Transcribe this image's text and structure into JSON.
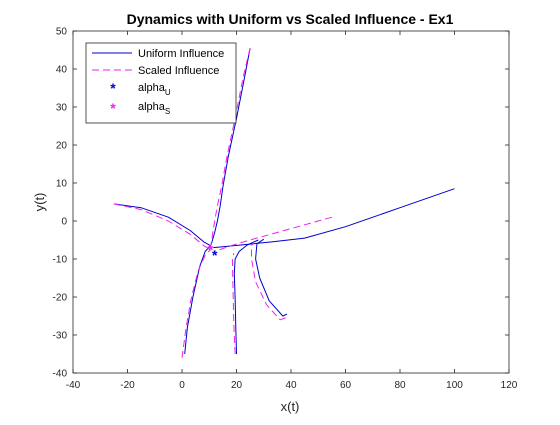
{
  "chart_data": {
    "type": "line",
    "title": "Dynamics with Uniform vs Scaled Influence - Ex1",
    "xlabel": "x(t)",
    "ylabel": "y(t)",
    "xlim": [
      -40,
      120
    ],
    "ylim": [
      -40,
      50
    ],
    "xticks": [
      -40,
      -20,
      0,
      20,
      40,
      60,
      80,
      100,
      120
    ],
    "yticks": [
      -40,
      -30,
      -20,
      -10,
      0,
      10,
      20,
      30,
      40,
      50
    ],
    "grid": false,
    "legend_position": "top-left",
    "legend": {
      "uniform": "Uniform Influence",
      "scaled": "Scaled Influence",
      "alpha_u": "alpha",
      "alpha_u_sub": "U",
      "alpha_s": "alpha",
      "alpha_s_sub": "S"
    },
    "colors": {
      "uniform": "#0000cc",
      "scaled": "#ee22ee",
      "axes": "#262626",
      "title": "#000000"
    },
    "series": [
      {
        "name": "Uniform Influence",
        "style": "solid",
        "trajectories": [
          [
            [
              -25,
              4.5
            ],
            [
              -15,
              3.5
            ],
            [
              -5,
              1
            ],
            [
              3,
              -2.5
            ],
            [
              8,
              -5.5
            ],
            [
              10.5,
              -6.5
            ]
          ],
          [
            [
              25,
              45.5
            ],
            [
              23,
              38
            ],
            [
              20,
              27
            ],
            [
              17,
              17
            ],
            [
              15,
              9
            ],
            [
              14,
              4
            ],
            [
              13,
              0
            ],
            [
              12,
              -3
            ],
            [
              11,
              -5.5
            ],
            [
              10.5,
              -6.5
            ]
          ],
          [
            [
              1,
              -35
            ],
            [
              2,
              -28
            ],
            [
              4,
              -20
            ],
            [
              6.5,
              -12
            ],
            [
              8.5,
              -8
            ],
            [
              10.5,
              -6.5
            ]
          ],
          [
            [
              20,
              -35
            ],
            [
              19.7,
              -27
            ],
            [
              19.5,
              -20
            ],
            [
              19.2,
              -14
            ],
            [
              19.5,
              -10
            ],
            [
              21,
              -8
            ],
            [
              24,
              -6.3
            ],
            [
              28,
              -5
            ]
          ],
          [
            [
              38.5,
              -24.5
            ],
            [
              37,
              -25
            ],
            [
              32,
              -21
            ],
            [
              28.5,
              -15
            ],
            [
              27,
              -10
            ],
            [
              27.5,
              -6
            ],
            [
              30,
              -4.8
            ]
          ],
          [
            [
              100,
              8.5
            ],
            [
              80,
              3.5
            ],
            [
              60,
              -1.5
            ],
            [
              45,
              -4.5
            ],
            [
              33,
              -5.5
            ],
            [
              23,
              -6.2
            ],
            [
              15,
              -6.8
            ],
            [
              11.5,
              -7
            ]
          ]
        ]
      },
      {
        "name": "Scaled Influence",
        "style": "dashed",
        "trajectories": [
          [
            [
              -25,
              4.5
            ],
            [
              -15,
              3
            ],
            [
              -5,
              0
            ],
            [
              3,
              -3.5
            ],
            [
              8,
              -6.5
            ],
            [
              10.5,
              -7.5
            ]
          ],
          [
            [
              25,
              45.5
            ],
            [
              22.5,
              38
            ],
            [
              19.5,
              27
            ],
            [
              16.5,
              17
            ],
            [
              14.5,
              9
            ],
            [
              13,
              4
            ],
            [
              12,
              0
            ],
            [
              11.3,
              -3
            ],
            [
              10.8,
              -5.5
            ],
            [
              10.5,
              -7.5
            ]
          ],
          [
            [
              0,
              -36
            ],
            [
              1.5,
              -28
            ],
            [
              3.5,
              -20
            ],
            [
              6,
              -13
            ],
            [
              8.5,
              -9
            ],
            [
              10.5,
              -7.5
            ]
          ],
          [
            [
              19.5,
              -35
            ],
            [
              19,
              -27
            ],
            [
              18.8,
              -20
            ],
            [
              18.6,
              -14
            ],
            [
              18.5,
              -10
            ],
            [
              19,
              -8.5
            ]
          ],
          [
            [
              38,
              -25.5
            ],
            [
              36,
              -26
            ],
            [
              31,
              -22
            ],
            [
              27,
              -16
            ],
            [
              25.5,
              -10
            ],
            [
              25.5,
              -6.5
            ],
            [
              26.5,
              -5.5
            ]
          ],
          [
            [
              55,
              1
            ],
            [
              45,
              -1
            ],
            [
              35,
              -3
            ],
            [
              25,
              -5
            ],
            [
              18,
              -6.5
            ],
            [
              14,
              -7.5
            ],
            [
              11.5,
              -8
            ]
          ]
        ]
      }
    ],
    "points": [
      {
        "name": "alpha_U",
        "x": 12,
        "y": -9,
        "color": "#0000cc",
        "marker": "*"
      },
      {
        "name": "alpha_S",
        "x": 10.5,
        "y": -7.5,
        "color": "#ee22ee",
        "marker": "*"
      }
    ]
  }
}
